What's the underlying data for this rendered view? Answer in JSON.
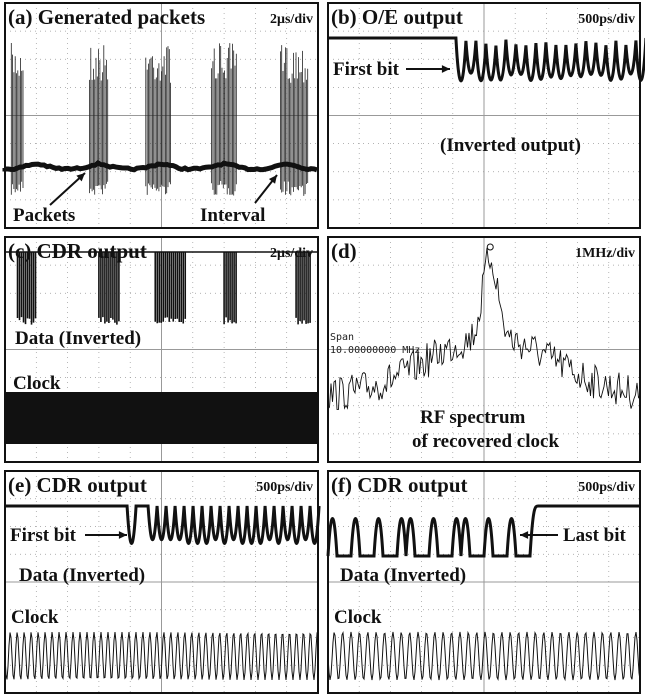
{
  "panels": [
    {
      "title": "(a) Generated packets",
      "scale": "2μs/div",
      "annotations": [
        "Packets",
        "Interval"
      ]
    },
    {
      "title": "(b) O/E output",
      "scale": "500ps/div",
      "annotations": [
        "First bit",
        "(Inverted output)"
      ]
    },
    {
      "title": "(c) CDR output",
      "scale": "2μs/div",
      "annotations": [
        "Data (Inverted)",
        "Clock"
      ]
    },
    {
      "title": "(d)",
      "scale": "1MHz/div",
      "annotations": [
        "Span",
        "10.00000000 MHz",
        "RF spectrum",
        "of recovered clock"
      ]
    },
    {
      "title": "(e) CDR output",
      "scale": "500ps/div",
      "annotations": [
        "First bit",
        "Data (Inverted)",
        "Clock"
      ]
    },
    {
      "title": "(f) CDR output",
      "scale": "500ps/div",
      "annotations": [
        "Last bit",
        "Data (Inverted)",
        "Clock"
      ]
    }
  ]
}
